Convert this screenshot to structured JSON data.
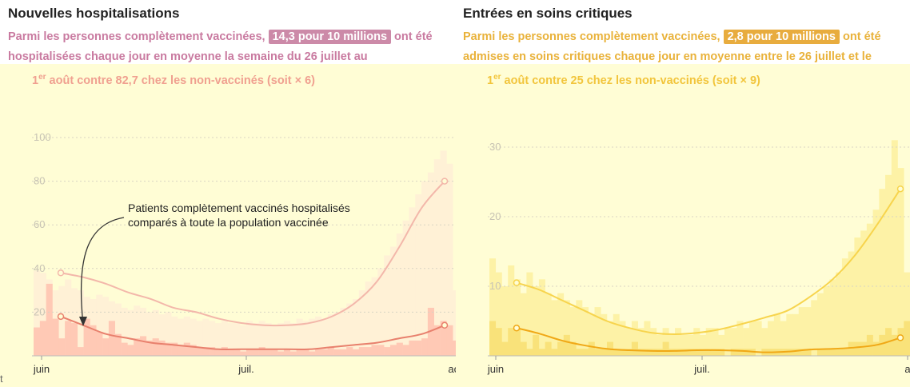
{
  "left": {
    "title": "Nouvelles hospitalisations",
    "sub_pre": "Parmi les personnes complètement vaccinées, ",
    "sub_hl": "14,3 pour 10 millions",
    "sub_mid": " ont été hospitalisées chaque jour en moyenne la semaine du 26 juillet au ",
    "sub_sup": "er",
    "sub_date": "1",
    "sub_post": " août contre  ",
    "sub_nv": "82,7 chez les non-vaccinés (soit × 6)",
    "annotation_line1": "Patients complètement vaccinés hospitalisés",
    "annotation_line2": "comparés à toute la population vaccinée"
  },
  "right": {
    "title": "Entrées en soins critiques",
    "sub_pre": "Parmi les personnes complètement vaccinées, ",
    "sub_hl": "2,8 pour 10 millions",
    "sub_mid": " ont été admises en soins critiques chaque jour en moyenne entre le 26 juillet et le ",
    "sub_sup": "er",
    "sub_date": "1",
    "sub_post": " août contre  ",
    "sub_nv": "25 chez les non-vaccinés (soit × 9)"
  },
  "footer_fragment": "t",
  "colors": {
    "hosp_vax": "#e8806d",
    "hosp_unvax": "#f3b7aa",
    "hosp_bar_vax": "#ffc9b5",
    "hosp_bar_unvax": "#fff1d6",
    "crit_vax": "#f0a816",
    "crit_unvax": "#f7d44d",
    "crit_bar_vax": "#f9e27a",
    "crit_bar_unvax": "#fdf2a6"
  },
  "chart_data": [
    {
      "type": "line",
      "title": "Nouvelles hospitalisations",
      "x_ticks": [
        "juin",
        "juil.",
        "août"
      ],
      "ylim": [
        0,
        100
      ],
      "y_ticks": [
        20,
        40,
        60,
        80,
        100
      ],
      "grid": true,
      "series": [
        {
          "values": [
            38,
            36,
            33,
            29,
            26,
            22,
            20,
            17,
            15,
            14,
            14,
            15,
            18,
            24,
            34,
            50,
            68,
            80
          ]
        },
        {
          "values": [
            18,
            14,
            10,
            8,
            6,
            5,
            4,
            3,
            3,
            3,
            3,
            3,
            4,
            5,
            6,
            8,
            10,
            14
          ]
        }
      ],
      "bars_vaccinated": [
        13,
        16,
        33,
        17,
        8,
        16,
        15,
        4,
        17,
        14,
        11,
        8,
        16,
        10,
        6,
        5,
        8,
        9,
        7,
        8,
        7,
        6,
        6,
        5,
        6,
        5,
        4,
        4,
        4,
        3,
        4,
        3,
        3,
        2,
        3,
        3,
        4,
        3,
        3,
        2,
        3,
        2,
        3,
        3,
        2,
        3,
        3,
        4,
        3,
        3,
        4,
        3,
        4,
        4,
        5,
        5,
        4,
        5,
        6,
        5,
        7,
        7,
        8,
        22,
        14,
        16,
        14,
        7
      ],
      "bars_unvaccinated": [
        39,
        38,
        35,
        30,
        32,
        35,
        31,
        30,
        27,
        26,
        28,
        27,
        25,
        24,
        22,
        21,
        23,
        22,
        20,
        21,
        19,
        20,
        18,
        17,
        18,
        17,
        16,
        17,
        16,
        15,
        16,
        15,
        15,
        14,
        16,
        15,
        16,
        15,
        14,
        15,
        16,
        15,
        17,
        16,
        17,
        18,
        17,
        19,
        20,
        22,
        24,
        26,
        30,
        34,
        36,
        40,
        46,
        50,
        56,
        62,
        68,
        74,
        80,
        84,
        90,
        94,
        88,
        30
      ]
    },
    {
      "type": "line",
      "title": "Entrées en soins critiques",
      "x_ticks": [
        "juin",
        "juil.",
        "a"
      ],
      "ylim": [
        0,
        30
      ],
      "y_ticks": [
        10,
        20,
        30
      ],
      "grid": true,
      "series": [
        {
          "values": [
            10.5,
            9.5,
            8,
            6.5,
            5,
            4,
            3.3,
            3.1,
            3.3,
            3.8,
            4.6,
            5.5,
            6.5,
            8.5,
            11,
            14.5,
            19,
            24
          ]
        },
        {
          "values": [
            4,
            3.2,
            2.2,
            1.5,
            1,
            0.8,
            0.7,
            0.7,
            0.8,
            0.8,
            0.7,
            0.5,
            0.6,
            0.9,
            1,
            1.2,
            1.6,
            2.6
          ]
        }
      ],
      "bars_vaccinated": [
        5,
        4,
        2,
        4,
        4,
        2,
        1,
        3,
        1,
        2,
        1,
        2,
        3,
        2,
        1,
        1,
        2,
        1,
        1,
        2,
        1,
        1,
        1,
        2,
        1,
        1,
        1,
        1,
        2,
        1,
        1,
        1,
        1,
        1,
        1,
        1,
        1,
        1,
        0,
        1,
        1,
        1,
        1,
        0,
        1,
        1,
        1,
        1,
        1,
        1,
        1,
        1,
        0,
        1,
        1,
        1,
        1,
        1,
        2,
        2,
        2,
        3,
        2,
        3,
        4,
        3,
        4,
        5
      ],
      "bars_unvaccinated": [
        14,
        12,
        10,
        13,
        11,
        9,
        12,
        10,
        11,
        9,
        8,
        9,
        8,
        7,
        8,
        7,
        6,
        7,
        6,
        5,
        6,
        5,
        4,
        5,
        4,
        5,
        4,
        3,
        4,
        3,
        4,
        3,
        3,
        4,
        3,
        4,
        4,
        3,
        4,
        4,
        5,
        4,
        5,
        5,
        4,
        5,
        6,
        5,
        6,
        6,
        7,
        7,
        8,
        9,
        10,
        11,
        12,
        14,
        15,
        17,
        18,
        19,
        21,
        24,
        26,
        31,
        27,
        12
      ]
    }
  ]
}
